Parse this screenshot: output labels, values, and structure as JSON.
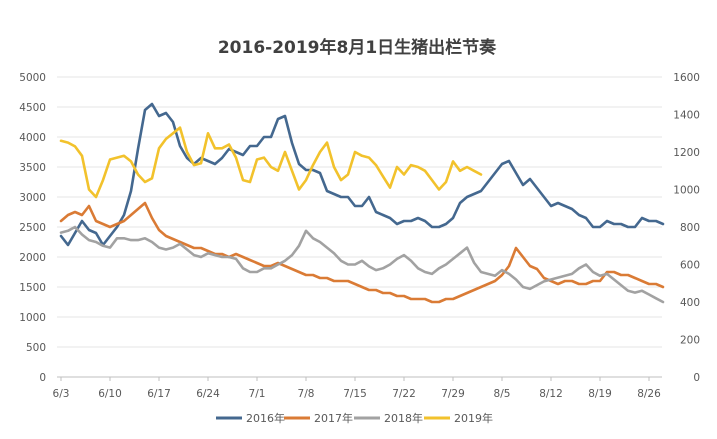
{
  "chart_data": {
    "type": "line",
    "title": "2016-2019年8月1日生猪出栏节奏",
    "x_ticks": [
      "6/3",
      "6/10",
      "6/17",
      "6/24",
      "7/1",
      "7/8",
      "7/15",
      "7/22",
      "7/29",
      "8/5",
      "8/12",
      "8/19",
      "8/26"
    ],
    "y_left": {
      "min": 0,
      "max": 5000,
      "ticks": [
        0,
        500,
        1000,
        1500,
        2000,
        2500,
        3000,
        3500,
        4000,
        4500,
        5000
      ]
    },
    "y_right": {
      "min": 0,
      "max": 1600,
      "ticks": [
        0,
        200,
        400,
        600,
        800,
        1000,
        1200,
        1400,
        1600
      ]
    },
    "grid": true,
    "legend_position": "bottom",
    "series": [
      {
        "name": "2016年",
        "axis": "left",
        "color": "#44688F",
        "values": [
          2350,
          2200,
          2400,
          2600,
          2450,
          2400,
          2200,
          2350,
          2500,
          2700,
          3100,
          3800,
          4450,
          4550,
          4350,
          4400,
          4250,
          3850,
          3650,
          3550,
          3650,
          3600,
          3550,
          3650,
          3800,
          3750,
          3700,
          3850,
          3850,
          4000,
          4000,
          4300,
          4350,
          3900,
          3550,
          3450,
          3450,
          3400,
          3100,
          3050,
          3000,
          3000,
          2850,
          2850,
          3000,
          2750,
          2700,
          2650,
          2550,
          2600,
          2600,
          2650,
          2600,
          2500,
          2500,
          2550,
          2650,
          2900,
          3000,
          3050,
          3100,
          3250,
          3400,
          3550,
          3600,
          3400,
          3200,
          3300,
          3150,
          3000,
          2850,
          2900,
          2850,
          2800,
          2700,
          2650,
          2500,
          2500,
          2600,
          2550,
          2550,
          2500,
          2500,
          2650,
          2600,
          2600,
          2550
        ]
      },
      {
        "name": "2017年",
        "axis": "left",
        "color": "#DA7B35",
        "values": [
          2600,
          2700,
          2750,
          2700,
          2850,
          2600,
          2550,
          2500,
          2550,
          2600,
          2700,
          2800,
          2900,
          2650,
          2450,
          2350,
          2300,
          2250,
          2200,
          2150,
          2150,
          2100,
          2050,
          2050,
          2000,
          2050,
          2000,
          1950,
          1900,
          1850,
          1850,
          1900,
          1850,
          1800,
          1750,
          1700,
          1700,
          1650,
          1650,
          1600,
          1600,
          1600,
          1550,
          1500,
          1450,
          1450,
          1400,
          1400,
          1350,
          1350,
          1300,
          1300,
          1300,
          1250,
          1250,
          1300,
          1300,
          1350,
          1400,
          1450,
          1500,
          1550,
          1600,
          1700,
          1850,
          2150,
          2000,
          1850,
          1800,
          1650,
          1600,
          1550,
          1600,
          1600,
          1550,
          1550,
          1600,
          1600,
          1750,
          1750,
          1700,
          1700,
          1650,
          1600,
          1550,
          1550,
          1500
        ]
      },
      {
        "name": "2018年",
        "axis": "right",
        "color": "#A2A2A2",
        "values": [
          770,
          780,
          800,
          760,
          730,
          720,
          700,
          690,
          740,
          740,
          730,
          730,
          740,
          720,
          690,
          680,
          690,
          710,
          680,
          650,
          640,
          660,
          650,
          640,
          640,
          630,
          580,
          560,
          560,
          580,
          580,
          600,
          620,
          650,
          700,
          780,
          740,
          720,
          690,
          660,
          620,
          600,
          600,
          620,
          590,
          570,
          580,
          600,
          630,
          650,
          620,
          580,
          560,
          550,
          580,
          600,
          630,
          660,
          690,
          610,
          560,
          550,
          540,
          570,
          550,
          520,
          480,
          470,
          490,
          510,
          520,
          530,
          540,
          550,
          580,
          600,
          560,
          540,
          550,
          520,
          490,
          460,
          450,
          460,
          440,
          420,
          400
        ]
      },
      {
        "name": "2019年",
        "axis": "right",
        "color": "#F2C22C",
        "values": [
          1260,
          1250,
          1230,
          1180,
          1000,
          960,
          1050,
          1160,
          1170,
          1180,
          1150,
          1080,
          1040,
          1060,
          1220,
          1270,
          1300,
          1330,
          1200,
          1130,
          1140,
          1300,
          1220,
          1220,
          1240,
          1170,
          1050,
          1040,
          1160,
          1170,
          1120,
          1100,
          1200,
          1100,
          1000,
          1050,
          1130,
          1200,
          1250,
          1120,
          1050,
          1080,
          1200,
          1180,
          1170,
          1130,
          1070,
          1010,
          1120,
          1080,
          1130,
          1120,
          1100,
          1050,
          1000,
          1040,
          1150,
          1100,
          1120,
          1100,
          1080
        ]
      }
    ]
  }
}
